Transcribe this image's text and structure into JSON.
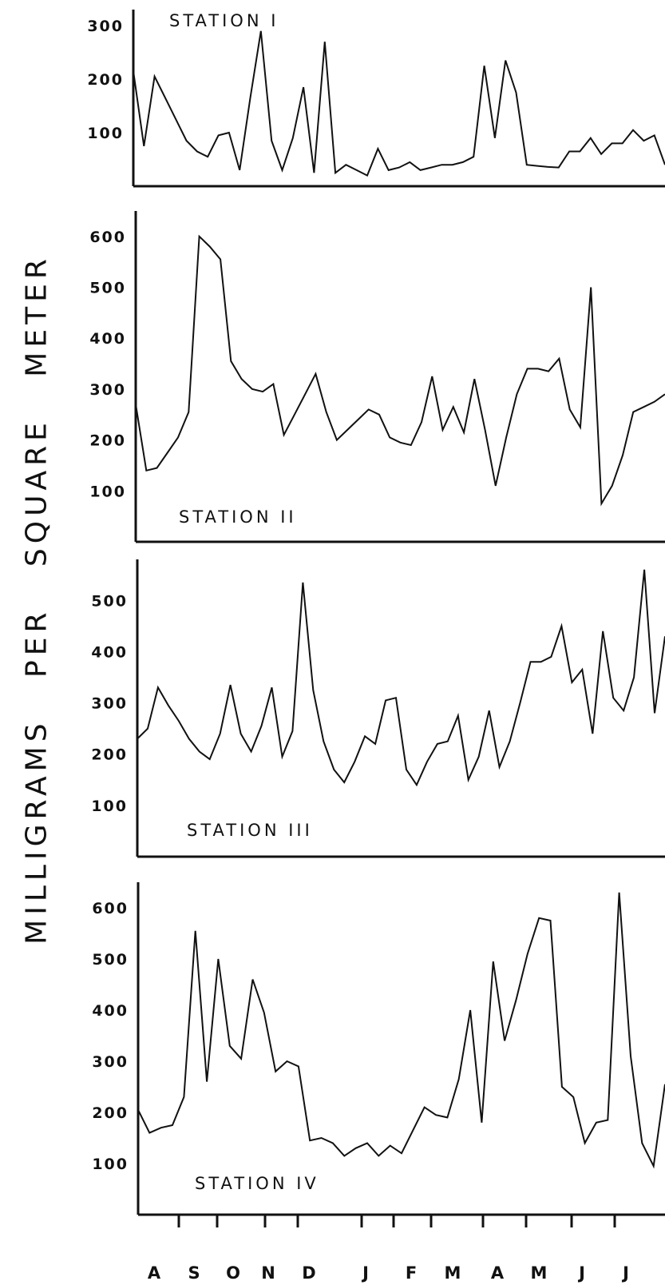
{
  "ylabel": "MILLIGRAMS PER SQUARE METER",
  "chart_data": [
    {
      "type": "line",
      "title": "STATION I",
      "ylim": [
        0,
        330
      ],
      "yticks": [
        100,
        200,
        300
      ],
      "values": [
        215,
        75,
        205,
        165,
        125,
        85,
        65,
        55,
        95,
        100,
        30,
        165,
        290,
        85,
        30,
        90,
        185,
        25,
        270,
        25,
        40,
        30,
        20,
        70,
        30,
        35,
        45,
        30,
        35,
        40,
        40,
        45,
        55,
        225,
        90,
        235,
        175,
        40,
        38,
        36,
        35,
        65,
        65,
        90,
        60,
        80,
        80,
        105,
        85,
        95,
        40
      ]
    },
    {
      "type": "line",
      "title": "STATION II",
      "ylim": [
        0,
        650
      ],
      "yticks": [
        100,
        200,
        300,
        400,
        500,
        600
      ],
      "values": [
        270,
        140,
        145,
        175,
        205,
        255,
        600,
        580,
        555,
        355,
        320,
        300,
        295,
        310,
        210,
        250,
        290,
        330,
        255,
        200,
        220,
        240,
        260,
        250,
        205,
        195,
        190,
        235,
        325,
        220,
        265,
        215,
        320,
        220,
        110,
        205,
        290,
        340,
        340,
        335,
        360,
        260,
        225,
        500,
        75,
        110,
        170,
        255,
        265,
        275,
        290
      ]
    },
    {
      "type": "line",
      "title": "STATION III",
      "ylim": [
        0,
        580
      ],
      "yticks": [
        100,
        200,
        300,
        400,
        500
      ],
      "values": [
        230,
        250,
        330,
        295,
        265,
        230,
        205,
        190,
        240,
        335,
        240,
        205,
        255,
        330,
        195,
        245,
        535,
        325,
        225,
        170,
        145,
        185,
        235,
        220,
        305,
        310,
        170,
        140,
        185,
        220,
        225,
        275,
        150,
        195,
        285,
        175,
        225,
        300,
        380,
        380,
        390,
        450,
        340,
        365,
        240,
        440,
        310,
        285,
        350,
        560,
        280,
        430
      ]
    },
    {
      "type": "line",
      "title": "STATION IV",
      "ylim": [
        0,
        650
      ],
      "yticks": [
        100,
        200,
        300,
        400,
        500,
        600
      ],
      "values": [
        205,
        160,
        170,
        175,
        230,
        555,
        260,
        500,
        330,
        305,
        460,
        395,
        280,
        300,
        290,
        145,
        150,
        140,
        115,
        130,
        140,
        115,
        135,
        120,
        165,
        210,
        195,
        190,
        265,
        400,
        180,
        495,
        340,
        420,
        510,
        580,
        575,
        250,
        230,
        140,
        180,
        185,
        630,
        310,
        140,
        95,
        255
      ]
    }
  ],
  "months": [
    "A",
    "S",
    "O",
    "N",
    "D",
    "J",
    "F",
    "M",
    "A",
    "M",
    "J",
    "J"
  ]
}
